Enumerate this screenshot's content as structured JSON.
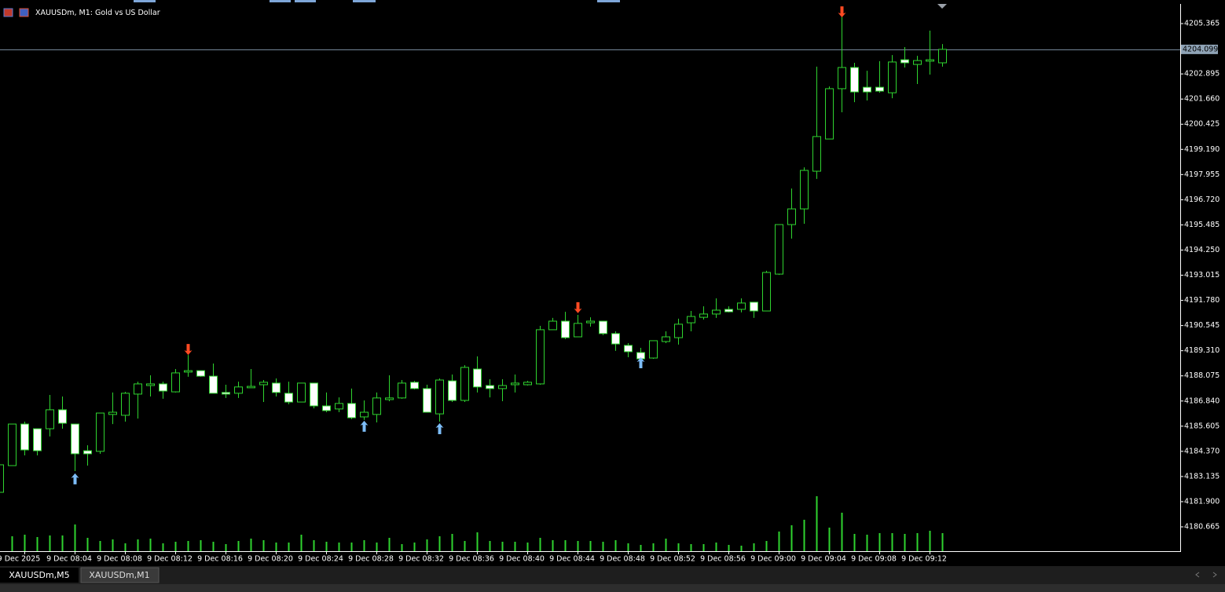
{
  "chart_data": {
    "type": "candlestick",
    "title": "XAUUSDm, M1: Gold vs US Dollar",
    "categories": [
      null,
      null,
      "9 Dec 2025",
      null,
      null,
      null,
      "9 Dec 08:04",
      null,
      null,
      null,
      "9 Dec 08:08",
      null,
      null,
      null,
      "9 Dec 08:12",
      null,
      null,
      null,
      "9 Dec 08:16",
      null,
      null,
      null,
      "9 Dec 08:20",
      null,
      null,
      null,
      "9 Dec 08:24",
      null,
      null,
      null,
      "9 Dec 08:28",
      null,
      null,
      null,
      "9 Dec 08:32",
      null,
      null,
      null,
      "9 Dec 08:36",
      null,
      null,
      null,
      "9 Dec 08:40",
      null,
      null,
      null,
      "9 Dec 08:44",
      null,
      null,
      null,
      "9 Dec 08:48",
      null,
      null,
      null,
      "9 Dec 08:52",
      null,
      null,
      null,
      "9 Dec 08:56",
      null,
      null,
      null,
      "9 Dec 09:00",
      null,
      null,
      null,
      "9 Dec 09:04",
      null,
      null,
      null,
      "9 Dec 09:08",
      null,
      null,
      null,
      "9 Dec 09:12",
      null
    ],
    "open": [
      4182.36,
      4183.67,
      4185.71,
      4185.48,
      4185.48,
      4186.41,
      4185.71,
      4184.4,
      4184.37,
      4186.18,
      4186.14,
      4187.18,
      4187.6,
      4187.68,
      4187.29,
      4188.26,
      4188.33,
      4188.06,
      4187.26,
      4187.22,
      4187.49,
      4187.64,
      4187.72,
      4187.22,
      4186.79,
      4187.72,
      4186.6,
      4186.45,
      4186.72,
      4186.06,
      4186.18,
      4186.91,
      4186.99,
      4187.76,
      4187.45,
      4186.21,
      4187.83,
      4186.87,
      4188.41,
      4187.6,
      4187.45,
      4187.64,
      4187.64,
      4187.68,
      4190.34,
      4190.76,
      4189.99,
      4190.68,
      4190.76,
      4190.15,
      4189.57,
      4189.22,
      4188.95,
      4189.76,
      4189.95,
      4190.68,
      4190.95,
      4191.11,
      4191.34,
      4191.34,
      4191.69,
      4191.26,
      4193.07,
      4195.5,
      4196.27,
      4198.12,
      4199.7,
      4202.17,
      4203.21,
      4202.24,
      4202.24,
      4201.97,
      4203.59,
      4203.36,
      4203.52,
      4203.44
    ],
    "high": [
      4183.71,
      4185.71,
      4185.83,
      4185.48,
      4187.14,
      4187.06,
      4185.71,
      4184.67,
      4186.25,
      4187.26,
      4187.29,
      4187.79,
      4188.1,
      4187.79,
      4188.41,
      4189.1,
      4188.33,
      4188.68,
      4187.64,
      4187.79,
      4188.41,
      4187.87,
      4187.95,
      4187.79,
      4187.72,
      4187.72,
      4187.26,
      4187.02,
      4187.45,
      4186.87,
      4187.26,
      4188.1,
      4187.87,
      4187.83,
      4187.64,
      4187.95,
      4188.14,
      4188.6,
      4189.03,
      4187.91,
      4187.91,
      4188.14,
      4187.83,
      4190.53,
      4190.92,
      4191.22,
      4191.07,
      4190.95,
      4190.76,
      4190.26,
      4189.68,
      4189.45,
      4189.8,
      4190.26,
      4190.88,
      4191.26,
      4191.49,
      4191.88,
      4191.49,
      4191.88,
      4191.69,
      4193.23,
      4195.5,
      4197.27,
      4198.31,
      4203.25,
      4202.28,
      4205.83,
      4203.44,
      4203.05,
      4203.52,
      4203.82,
      4204.21,
      4203.78,
      4205.02,
      4204.36
    ],
    "low": [
      4182.36,
      4183.67,
      4184.17,
      4184.17,
      4185.1,
      4185.48,
      4183.4,
      4183.67,
      4184.25,
      4185.71,
      4185.83,
      4185.98,
      4187.06,
      4186.95,
      4187.26,
      4188.03,
      4188.03,
      4187.22,
      4186.99,
      4186.99,
      4187.49,
      4186.79,
      4187.06,
      4186.68,
      4186.79,
      4186.48,
      4186.29,
      4186.29,
      4185.95,
      4185.91,
      4185.79,
      4186.83,
      4186.95,
      4187.41,
      4186.29,
      4185.83,
      4186.79,
      4186.79,
      4187.26,
      4187.02,
      4186.83,
      4187.26,
      4187.6,
      4187.64,
      4190.34,
      4189.88,
      4189.99,
      4190.49,
      4190.07,
      4189.3,
      4188.99,
      4188.84,
      4188.91,
      4189.68,
      4189.61,
      4190.26,
      4190.84,
      4190.92,
      4191.19,
      4191.19,
      4190.92,
      4191.26,
      4193.03,
      4194.81,
      4195.54,
      4197.74,
      4199.7,
      4201.01,
      4201.51,
      4201.59,
      4201.97,
      4201.7,
      4203.21,
      4202.4,
      4202.86,
      4203.25
    ],
    "close": [
      4183.71,
      4185.71,
      4184.44,
      4184.4,
      4186.41,
      4185.75,
      4184.25,
      4184.25,
      4186.25,
      4186.29,
      4187.22,
      4187.68,
      4187.68,
      4187.33,
      4188.22,
      4188.33,
      4188.06,
      4187.22,
      4187.18,
      4187.53,
      4187.56,
      4187.76,
      4187.26,
      4186.79,
      4187.72,
      4186.6,
      4186.37,
      4186.72,
      4186.02,
      4186.29,
      4186.99,
      4186.99,
      4187.72,
      4187.45,
      4186.29,
      4187.87,
      4186.87,
      4188.49,
      4187.53,
      4187.45,
      4187.6,
      4187.72,
      4187.76,
      4190.34,
      4190.76,
      4189.95,
      4190.65,
      4190.76,
      4190.15,
      4189.64,
      4189.26,
      4188.91,
      4189.8,
      4189.99,
      4190.61,
      4190.99,
      4191.11,
      4191.3,
      4191.22,
      4191.65,
      4191.26,
      4193.15,
      4195.5,
      4196.27,
      4198.16,
      4199.82,
      4202.17,
      4203.21,
      4202.01,
      4202.01,
      4202.05,
      4203.48,
      4203.44,
      4203.55,
      4203.59,
      4204.1
    ],
    "volume": [
      null,
      19,
      21,
      18,
      20,
      20,
      34,
      17,
      13,
      15,
      10,
      15,
      16,
      10,
      12,
      13,
      14,
      12,
      9,
      13,
      16,
      14,
      11,
      11,
      21,
      14,
      12,
      11,
      11,
      14,
      11,
      17,
      9,
      11,
      15,
      19,
      22,
      13,
      24,
      13,
      12,
      12,
      11,
      17,
      14,
      14,
      13,
      13,
      12,
      14,
      10,
      8,
      10,
      16,
      10,
      9,
      9,
      11,
      8,
      7,
      10,
      13,
      25,
      33,
      40,
      70,
      30,
      49,
      22,
      21,
      23,
      23,
      22,
      23,
      26,
      23
    ],
    "volume_lim": [
      0,
      100
    ],
    "up_arrows": [
      null,
      null,
      null,
      null,
      null,
      null,
      4183.29,
      null,
      null,
      null,
      null,
      null,
      null,
      null,
      null,
      null,
      null,
      null,
      null,
      null,
      null,
      null,
      null,
      null,
      null,
      null,
      null,
      null,
      null,
      4185.87,
      null,
      null,
      null,
      null,
      null,
      4185.75,
      null,
      null,
      null,
      null,
      null,
      null,
      null,
      null,
      null,
      null,
      null,
      null,
      null,
      null,
      null,
      4188.99,
      null,
      null,
      null,
      null,
      null,
      null,
      null,
      null,
      null,
      null,
      null,
      null,
      null,
      null,
      null,
      null,
      null,
      null,
      null,
      null,
      null,
      null,
      null,
      null
    ],
    "down_arrows": [
      null,
      null,
      null,
      null,
      null,
      null,
      null,
      null,
      null,
      null,
      null,
      null,
      null,
      null,
      null,
      4189.1,
      null,
      null,
      null,
      null,
      null,
      null,
      null,
      null,
      null,
      null,
      null,
      null,
      null,
      null,
      null,
      null,
      null,
      null,
      null,
      null,
      null,
      null,
      null,
      null,
      null,
      null,
      null,
      null,
      null,
      null,
      4191.15,
      null,
      null,
      null,
      null,
      null,
      null,
      null,
      null,
      null,
      null,
      null,
      null,
      null,
      null,
      null,
      null,
      null,
      null,
      null,
      null,
      4205.67,
      null,
      null,
      null,
      null,
      null,
      null,
      null,
      null
    ],
    "up_color": "#7dbdf8",
    "down_color": "#ff4a22",
    "candle_color": "#2fd42f",
    "bear_fill": "#ffffff",
    "bull_fill": "#000000",
    "volume_color": "#2fd42f",
    "current_price": 4204.099,
    "ylim": [
      4179.47,
      4206.33
    ],
    "yticks": [
      4205.365,
      4202.895,
      {
        "value": 4201.66,
        "label": "4201.660"
      },
      4200.425,
      {
        "value": 4199.19,
        "label": "4199.190"
      },
      4197.955,
      {
        "value": 4196.72,
        "label": "4196.720"
      },
      4195.485,
      {
        "value": 4194.25,
        "label": "4194.250"
      },
      4193.015,
      {
        "value": 4191.78,
        "label": "4191.780"
      },
      4190.545,
      {
        "value": 4189.31,
        "label": "4189.310"
      },
      4188.075,
      {
        "value": 4186.84,
        "label": "4186.840"
      },
      4185.605,
      {
        "value": 4184.37,
        "label": "4184.370"
      },
      4183.135,
      {
        "value": 4181.9,
        "label": "4181.900"
      },
      4180.665
    ],
    "grid": false
  },
  "tabs": [
    "XAUUSDm,M5",
    "XAUUSDm,M1"
  ]
}
